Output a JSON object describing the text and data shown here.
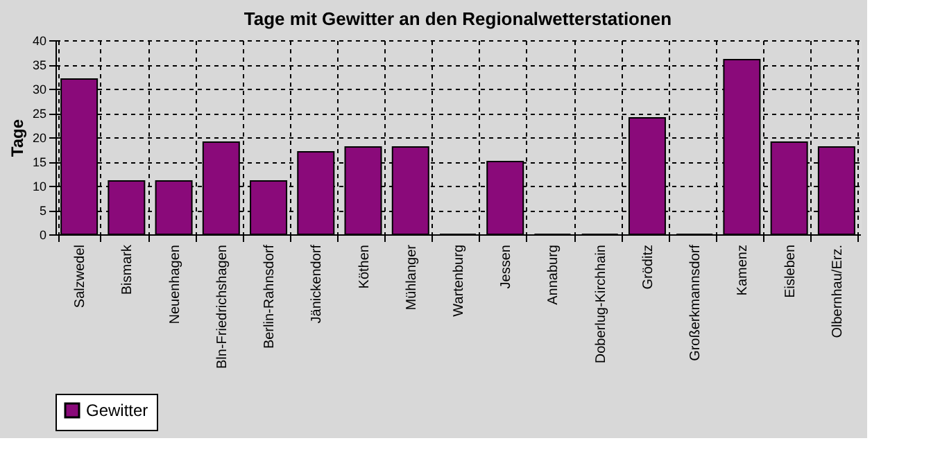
{
  "chart_data": {
    "type": "bar",
    "title": "Tage mit Gewitter an den Regionalwetterstationen",
    "ylabel": "Tage",
    "categories": [
      "Salzwedel",
      "Bismark",
      "Neuenhagen",
      "Bln-Friedrichshagen",
      "Berlin-Rahnsdorf",
      "Jänickendorf",
      "Köthen",
      "Mühlanger",
      "Wartenburg",
      "Jessen",
      "Annaburg",
      "Doberlug-Kirchhain",
      "Gröditz",
      "Großerkmannsdorf",
      "Kamenz",
      "Eisleben",
      "Olbernhau/Erz."
    ],
    "series": [
      {
        "name": "Gewitter",
        "color": "#8a0a7a",
        "values": [
          32,
          11,
          11,
          19,
          11,
          17,
          18,
          18,
          0,
          15,
          0,
          0,
          24,
          0,
          36,
          19,
          18
        ]
      }
    ],
    "ylim": [
      0,
      40
    ],
    "yticks": [
      0,
      5,
      10,
      15,
      20,
      25,
      30,
      35,
      40
    ],
    "grid": true,
    "legend": "bottom"
  }
}
